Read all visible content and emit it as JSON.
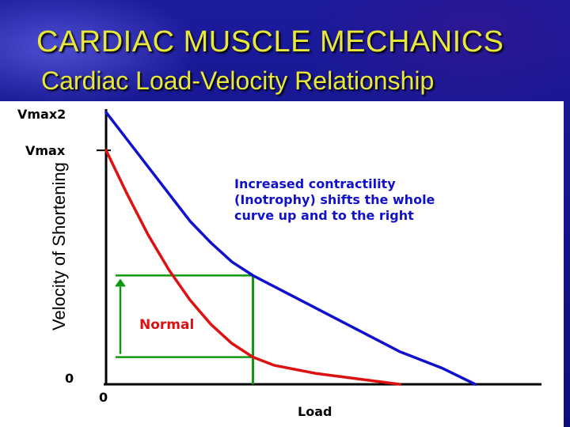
{
  "slide": {
    "title": "CARDIAC  MUSCLE MECHANICS",
    "subtitle": "Cardiac Load-Velocity Relationship"
  },
  "colors": {
    "title_text": "#e8e83a",
    "normal_curve": "#dd1111",
    "increased_curve": "#1111cc",
    "guide_lines": "#119911",
    "annotation_text": "#1111cc",
    "normal_label": "#dd1111"
  },
  "chart_data": {
    "type": "line",
    "title": "",
    "xlabel": "Load",
    "ylabel": "Velocity of Shortening",
    "x_origin_label": "0",
    "y_origin_label": "0",
    "y_tick_labels": [
      {
        "label": "Vmax2",
        "value": 1.0
      },
      {
        "label": "Vmax",
        "value": 0.86
      }
    ],
    "xlim": [
      0,
      1
    ],
    "ylim": [
      0,
      1
    ],
    "series": [
      {
        "name": "Normal",
        "color": "#dd1111",
        "points": [
          [
            0.0,
            0.86
          ],
          [
            0.05,
            0.7
          ],
          [
            0.1,
            0.55
          ],
          [
            0.15,
            0.42
          ],
          [
            0.2,
            0.31
          ],
          [
            0.25,
            0.22
          ],
          [
            0.3,
            0.15
          ],
          [
            0.35,
            0.1
          ],
          [
            0.4,
            0.07
          ],
          [
            0.5,
            0.04
          ],
          [
            0.6,
            0.02
          ],
          [
            0.7,
            0.0
          ]
        ]
      },
      {
        "name": "",
        "color": "#1111cc",
        "points": [
          [
            0.0,
            1.0
          ],
          [
            0.05,
            0.9
          ],
          [
            0.1,
            0.8
          ],
          [
            0.15,
            0.7
          ],
          [
            0.2,
            0.6
          ],
          [
            0.25,
            0.52
          ],
          [
            0.3,
            0.45
          ],
          [
            0.35,
            0.4
          ],
          [
            0.4,
            0.36
          ],
          [
            0.5,
            0.28
          ],
          [
            0.6,
            0.2
          ],
          [
            0.7,
            0.12
          ],
          [
            0.8,
            0.06
          ],
          [
            0.88,
            0.0
          ]
        ]
      }
    ],
    "reference_load": 0.35,
    "reference_velocities": [
      0.4,
      0.1
    ],
    "annotation_lines": [
      "Increased contractility",
      "(Inotrophy) shifts the whole",
      "curve up and to the right"
    ],
    "grid": false,
    "legend": "none"
  }
}
